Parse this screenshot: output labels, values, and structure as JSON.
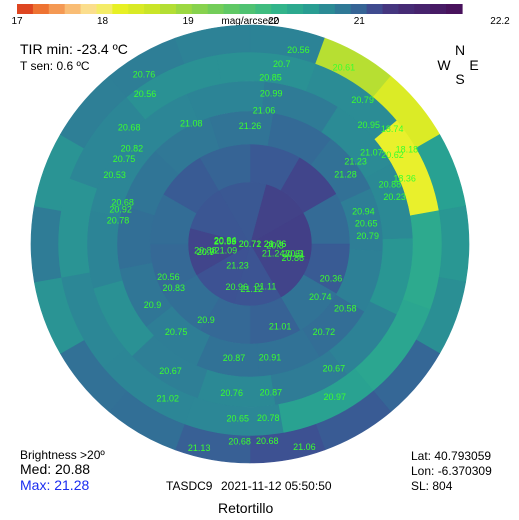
{
  "chart_data": {
    "type": "heatmap",
    "projection": "polar sky map (zenith at center, horizon at edge)",
    "colorbar": {
      "unit_label": "mag/arcsec2",
      "min": 17,
      "max": 22.2,
      "tick_labels": [
        "17",
        "18",
        "19",
        "20",
        "21",
        "22.2"
      ],
      "tick_values": [
        17,
        18,
        19,
        20,
        21,
        22.2
      ],
      "colormap": "viridis-like (red-orange-yellow at bright end)"
    },
    "rings": [
      {
        "ring": 1,
        "values": [
          21.26,
          21.28,
          21.24,
          21.11,
          21.12,
          21.23,
          21.09,
          21.08
        ]
      },
      {
        "ring": 2,
        "values": [
          21.07,
          21.23,
          20.94,
          21.06,
          20.86,
          21.01,
          20.96,
          20.9,
          20.96,
          20.92,
          21.06,
          20.99
        ]
      },
      {
        "ring": 3,
        "values": [
          20.95,
          20.88,
          20.76,
          20.74,
          20.91,
          20.87,
          20.87,
          20.76,
          20.83,
          20.9,
          20.84,
          20.82,
          20.85
        ]
      },
      {
        "ring": 4,
        "values": [
          20.79,
          20.62,
          20.65,
          20.51,
          20.72,
          20.78,
          20.65,
          20.75,
          20.56,
          20.7,
          20.68,
          20.68,
          20.7
        ]
      },
      {
        "ring": 5,
        "values": [
          20.61,
          18.18,
          20.23,
          20.3,
          20.36,
          20.67,
          20.68,
          20.67,
          20.53,
          20.68,
          20.56,
          20.56
        ]
      },
      {
        "ring": 6,
        "values": [
          20.71,
          18.74,
          18.36,
          20.39,
          20.5,
          20.58,
          20.97,
          21.06,
          21.13,
          21.02,
          20.9,
          20.88,
          20.53,
          20.78,
          20.53,
          20.75,
          20.76,
          20.72
        ]
      }
    ],
    "labels": [
      {
        "v": "20.72",
        "a": 14,
        "b": 0
      },
      {
        "v": "20.71",
        "a": 30,
        "b": 0
      },
      {
        "v": "20.56",
        "a": 14,
        "b": 1
      },
      {
        "v": "20.61",
        "a": 28,
        "b": 1
      },
      {
        "v": "20.76",
        "a": -32,
        "b": 1
      },
      {
        "v": "18.74",
        "a": 51,
        "b": 2
      },
      {
        "v": "20.7",
        "a": 10,
        "b": 2
      },
      {
        "v": "20.79",
        "a": 38,
        "b": 2
      },
      {
        "v": "20.56",
        "a": -35,
        "b": 2
      },
      {
        "v": "18.18",
        "a": 59,
        "b": 2
      },
      {
        "v": "20.85",
        "a": 7,
        "b": 3
      },
      {
        "v": "20.95",
        "a": 45,
        "b": 3
      },
      {
        "v": "20.68",
        "a": -46,
        "b": 3
      },
      {
        "v": "20.75",
        "a": -56,
        "b": 4
      },
      {
        "v": "20.62",
        "a": 58,
        "b": 3
      },
      {
        "v": "18.36",
        "a": 67,
        "b": 3
      },
      {
        "v": "20.99",
        "a": 8,
        "b": 4
      },
      {
        "v": "21.07",
        "a": 53,
        "b": 4
      },
      {
        "v": "20.82",
        "a": -51,
        "b": 4
      },
      {
        "v": "20.53",
        "a": -63,
        "b": 4
      },
      {
        "v": "20.88",
        "a": 67,
        "b": 4
      },
      {
        "v": "20.23",
        "a": 72,
        "b": 4
      },
      {
        "v": "21.06",
        "a": 6,
        "b": 5
      },
      {
        "v": "21.23",
        "a": 52,
        "b": 5
      },
      {
        "v": "20.78",
        "a": -80,
        "b": 5
      },
      {
        "v": "20.68",
        "a": -72,
        "b": 5
      },
      {
        "v": "20.92",
        "a": -75,
        "b": 5
      },
      {
        "v": "21.08",
        "a": -26,
        "b": 5
      },
      {
        "v": "21.26",
        "a": 0,
        "b": 6
      },
      {
        "v": "21.28",
        "a": 54,
        "b": 6
      },
      {
        "v": "20.94",
        "a": 74,
        "b": 6
      },
      {
        "v": "20.65",
        "a": 80,
        "b": 6
      },
      {
        "v": "20.79",
        "a": 86,
        "b": 6
      },
      {
        "v": "20.53",
        "a": -84,
        "b": 7
      },
      {
        "v": "20.84",
        "a": -82,
        "b": 7
      },
      {
        "v": "20.96",
        "a": -83,
        "b": 7
      },
      {
        "v": "21.09",
        "a": -105,
        "b": 7
      },
      {
        "v": "21.23",
        "a": -150,
        "b": 7
      },
      {
        "v": "21.24",
        "a": 112,
        "b": 7
      },
      {
        "v": "21.06",
        "a": 90,
        "b": 7
      },
      {
        "v": "20.76",
        "a": 90,
        "b": 7
      },
      {
        "v": "20.3",
        "a": 93,
        "b": 7
      },
      {
        "v": "20.88",
        "a": -98,
        "b": 8
      },
      {
        "v": "20.7",
        "a": -100,
        "b": 8
      },
      {
        "v": "20.9",
        "a": -100,
        "b": 8
      },
      {
        "v": "20.96",
        "a": -163,
        "b": 8
      },
      {
        "v": "21.12",
        "a": 178,
        "b": 8
      },
      {
        "v": "21.11",
        "a": 160,
        "b": 8
      },
      {
        "v": "20.86",
        "a": 108,
        "b": 8
      },
      {
        "v": "20.51",
        "a": 103,
        "b": 8
      },
      {
        "v": "20.5",
        "a": 102,
        "b": 8
      },
      {
        "v": "20.56",
        "a": -112,
        "b": 9
      },
      {
        "v": "20.83",
        "a": -120,
        "b": 9
      },
      {
        "v": "20.9",
        "a": -150,
        "b": 9
      },
      {
        "v": "21.01",
        "a": 160,
        "b": 9
      },
      {
        "v": "20.74",
        "a": 127,
        "b": 9
      },
      {
        "v": "20.36",
        "a": 113,
        "b": 9
      },
      {
        "v": "20.87",
        "a": -172,
        "b": 10
      },
      {
        "v": "20.91",
        "a": 170,
        "b": 10
      },
      {
        "v": "20.75",
        "a": -140,
        "b": 10
      },
      {
        "v": "20.72",
        "a": 140,
        "b": 10
      },
      {
        "v": "20.9",
        "a": -122,
        "b": 10
      },
      {
        "v": "20.58",
        "a": 124,
        "b": 10
      },
      {
        "v": "20.76",
        "a": -173,
        "b": 11
      },
      {
        "v": "20.87",
        "a": 172,
        "b": 11
      },
      {
        "v": "20.67",
        "a": -148,
        "b": 11
      },
      {
        "v": "20.67",
        "a": 146,
        "b": 11
      },
      {
        "v": "20.65",
        "a": -176,
        "b": 12
      },
      {
        "v": "20.78",
        "a": 174,
        "b": 12
      },
      {
        "v": "21.02",
        "a": -152,
        "b": 12
      },
      {
        "v": "20.97",
        "a": 151,
        "b": 12
      },
      {
        "v": "20.68",
        "a": -177,
        "b": 13
      },
      {
        "v": "20.68",
        "a": 175,
        "b": 13
      },
      {
        "v": "21.13",
        "a": -166,
        "b": 14
      },
      {
        "v": "21.06",
        "a": 165,
        "b": 14
      }
    ],
    "compass": {
      "north": "N",
      "south": "S",
      "east": "E",
      "west": "W"
    }
  },
  "readouts": {
    "tir_min": "TIR min: -23.4 ºC",
    "t_sen": "T sen: 0.6 ºC",
    "brightness_title": "Brightness >20º",
    "median": "Med: 20.88",
    "max": "Max: 21.28",
    "device": "TASDC9",
    "timestamp": "2021-11-12  05:50:50",
    "lat": "Lat: 40.793059",
    "lon": "Lon: -6.370309",
    "sl": "SL:  804",
    "location": "Retortillo"
  },
  "colors": {
    "max_text": "#1a2cf0",
    "label_text": "#3bff2e",
    "background": "#ffffff"
  }
}
